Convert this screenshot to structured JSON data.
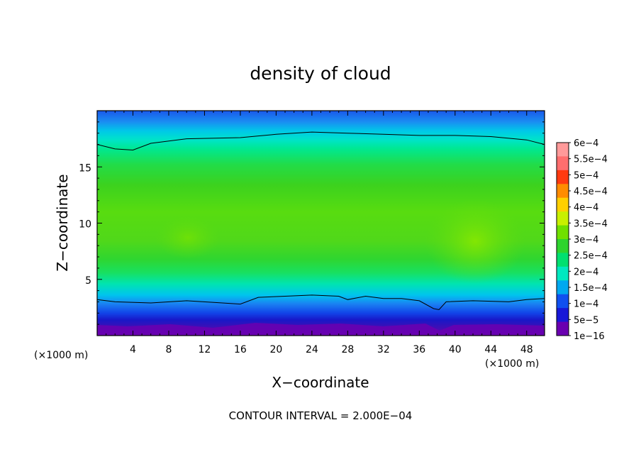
{
  "chart_data": {
    "type": "contour",
    "title": "density of cloud",
    "xlabel": "X−coordinate",
    "ylabel": "Z−coordinate",
    "x_unit": "(×1000 m)",
    "y_unit": "(×1000 m)",
    "xlim": [
      0,
      50
    ],
    "ylim": [
      0,
      20
    ],
    "x_ticks": [
      4,
      8,
      12,
      16,
      20,
      24,
      28,
      32,
      36,
      40,
      44,
      48
    ],
    "y_ticks": [
      5,
      10,
      15
    ],
    "contour_interval_text": "CONTOUR INTERVAL = 2.000E−04",
    "colorbar": {
      "labels": [
        "6e−4",
        "5.5e−4",
        "5e−4",
        "4.5e−4",
        "4e−4",
        "3.5e−4",
        "3e−4",
        "2.5e−4",
        "2e−4",
        "1.5e−4",
        "1e−4",
        "5e−5",
        "1e−16"
      ],
      "colors": [
        "#ff9a9a",
        "#ff6e6e",
        "#ff3a10",
        "#ff8c00",
        "#ffd000",
        "#c8f000",
        "#70e000",
        "#2ed42e",
        "#00e070",
        "#00e8c0",
        "#00a8f0",
        "#1050f0",
        "#1818d8",
        "#6a00b0"
      ]
    },
    "contour_lines": [
      {
        "level": "2e−4",
        "points": [
          [
            0,
            17.0
          ],
          [
            2,
            16.6
          ],
          [
            4,
            16.5
          ],
          [
            6,
            17.1
          ],
          [
            10,
            17.5
          ],
          [
            16,
            17.6
          ],
          [
            20,
            17.9
          ],
          [
            24,
            18.1
          ],
          [
            28,
            18.0
          ],
          [
            32,
            17.9
          ],
          [
            36,
            17.8
          ],
          [
            40,
            17.8
          ],
          [
            44,
            17.7
          ],
          [
            48,
            17.4
          ],
          [
            50,
            17.0
          ]
        ]
      },
      {
        "level": "2e−4",
        "points": [
          [
            0,
            3.2
          ],
          [
            2,
            3.0
          ],
          [
            6,
            2.9
          ],
          [
            10,
            3.1
          ],
          [
            14,
            2.9
          ],
          [
            16,
            2.8
          ],
          [
            18,
            3.4
          ],
          [
            21,
            3.5
          ],
          [
            24,
            3.6
          ],
          [
            27,
            3.5
          ],
          [
            28,
            3.2
          ],
          [
            30,
            3.5
          ],
          [
            32,
            3.3
          ],
          [
            34,
            3.3
          ],
          [
            36,
            3.1
          ],
          [
            37.6,
            2.4
          ],
          [
            38.2,
            2.3
          ],
          [
            39,
            3.0
          ],
          [
            42,
            3.1
          ],
          [
            46,
            3.0
          ],
          [
            48,
            3.2
          ],
          [
            50,
            3.3
          ]
        ]
      }
    ]
  }
}
